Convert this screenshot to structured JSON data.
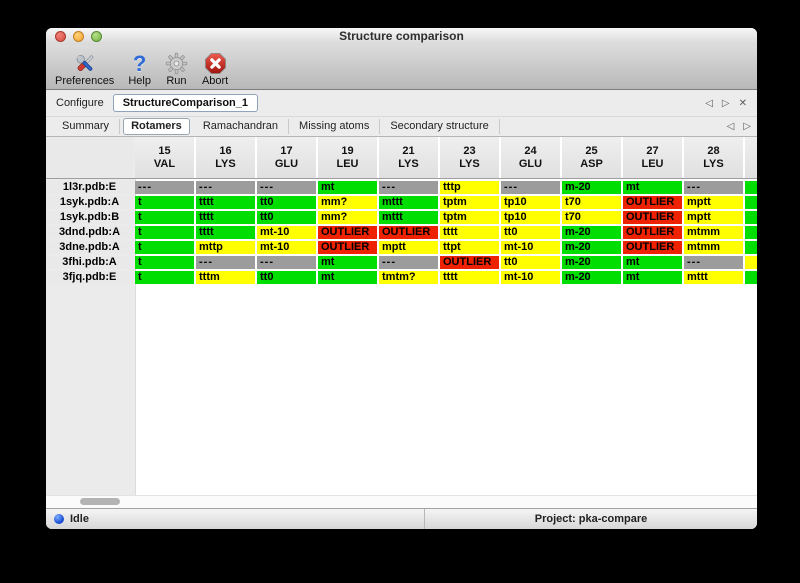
{
  "window": {
    "title": "Structure comparison"
  },
  "toolbar": {
    "buttons": [
      {
        "label": "Preferences"
      },
      {
        "label": "Help"
      },
      {
        "label": "Run"
      },
      {
        "label": "Abort"
      }
    ]
  },
  "configure": {
    "label": "Configure",
    "tab": "StructureComparison_1",
    "nav": {
      "left": "◁",
      "right": "▷",
      "close": "✕"
    }
  },
  "tabs": {
    "items": [
      "Summary",
      "Rotamers",
      "Ramachandran",
      "Missing atoms",
      "Secondary structure"
    ],
    "selected": "Rotamers",
    "nav": {
      "left": "◁",
      "right": "▷"
    }
  },
  "theme": {
    "green": "#00dd00",
    "yellow": "#ffff00",
    "red": "#ee2200",
    "gray": "#9c9c9c"
  },
  "grid": {
    "columns": [
      {
        "num": "15",
        "res": "VAL"
      },
      {
        "num": "16",
        "res": "LYS"
      },
      {
        "num": "17",
        "res": "GLU"
      },
      {
        "num": "19",
        "res": "LEU"
      },
      {
        "num": "21",
        "res": "LYS"
      },
      {
        "num": "23",
        "res": "LYS"
      },
      {
        "num": "24",
        "res": "GLU"
      },
      {
        "num": "25",
        "res": "ASP"
      },
      {
        "num": "27",
        "res": "LEU"
      },
      {
        "num": "28",
        "res": "LYS"
      }
    ],
    "rows": [
      {
        "label": "1l3r.pdb:E",
        "cells": [
          {
            "t": "---",
            "s": "gray"
          },
          {
            "t": "---",
            "s": "gray"
          },
          {
            "t": "---",
            "s": "gray"
          },
          {
            "t": "mt",
            "s": "green"
          },
          {
            "t": "---",
            "s": "gray"
          },
          {
            "t": "tttp",
            "s": "yellow"
          },
          {
            "t": "---",
            "s": "gray"
          },
          {
            "t": "m-20",
            "s": "green"
          },
          {
            "t": "mt",
            "s": "green"
          },
          {
            "t": "---",
            "s": "gray"
          },
          {
            "t": "",
            "s": "green"
          }
        ]
      },
      {
        "label": "1syk.pdb:A",
        "cells": [
          {
            "t": "t",
            "s": "green"
          },
          {
            "t": "tttt",
            "s": "green"
          },
          {
            "t": "tt0",
            "s": "green"
          },
          {
            "t": "mm?",
            "s": "yellow"
          },
          {
            "t": "mttt",
            "s": "green"
          },
          {
            "t": "tptm",
            "s": "yellow"
          },
          {
            "t": "tp10",
            "s": "yellow"
          },
          {
            "t": "t70",
            "s": "yellow"
          },
          {
            "t": "OUTLIER",
            "s": "red"
          },
          {
            "t": "mptt",
            "s": "yellow"
          },
          {
            "t": "",
            "s": "green"
          }
        ]
      },
      {
        "label": "1syk.pdb:B",
        "cells": [
          {
            "t": "t",
            "s": "green"
          },
          {
            "t": "tttt",
            "s": "green"
          },
          {
            "t": "tt0",
            "s": "green"
          },
          {
            "t": "mm?",
            "s": "yellow"
          },
          {
            "t": "mttt",
            "s": "green"
          },
          {
            "t": "tptm",
            "s": "yellow"
          },
          {
            "t": "tp10",
            "s": "yellow"
          },
          {
            "t": "t70",
            "s": "yellow"
          },
          {
            "t": "OUTLIER",
            "s": "red"
          },
          {
            "t": "mptt",
            "s": "yellow"
          },
          {
            "t": "",
            "s": "green"
          }
        ]
      },
      {
        "label": "3dnd.pdb:A",
        "cells": [
          {
            "t": "t",
            "s": "green"
          },
          {
            "t": "tttt",
            "s": "green"
          },
          {
            "t": "mt-10",
            "s": "yellow"
          },
          {
            "t": "OUTLIER",
            "s": "red"
          },
          {
            "t": "OUTLIER",
            "s": "red"
          },
          {
            "t": "tttt",
            "s": "yellow"
          },
          {
            "t": "tt0",
            "s": "yellow"
          },
          {
            "t": "m-20",
            "s": "green"
          },
          {
            "t": "OUTLIER",
            "s": "red"
          },
          {
            "t": "mtmm",
            "s": "yellow"
          },
          {
            "t": "",
            "s": "green"
          }
        ]
      },
      {
        "label": "3dne.pdb:A",
        "cells": [
          {
            "t": "t",
            "s": "green"
          },
          {
            "t": "mttp",
            "s": "yellow"
          },
          {
            "t": "mt-10",
            "s": "yellow"
          },
          {
            "t": "OUTLIER",
            "s": "red"
          },
          {
            "t": "mptt",
            "s": "yellow"
          },
          {
            "t": "ttpt",
            "s": "yellow"
          },
          {
            "t": "mt-10",
            "s": "yellow"
          },
          {
            "t": "m-20",
            "s": "green"
          },
          {
            "t": "OUTLIER",
            "s": "red"
          },
          {
            "t": "mtmm",
            "s": "yellow"
          },
          {
            "t": "",
            "s": "green"
          }
        ]
      },
      {
        "label": "3fhi.pdb:A",
        "cells": [
          {
            "t": "t",
            "s": "green"
          },
          {
            "t": "---",
            "s": "gray"
          },
          {
            "t": "---",
            "s": "gray"
          },
          {
            "t": "mt",
            "s": "green"
          },
          {
            "t": "---",
            "s": "gray"
          },
          {
            "t": "OUTLIER",
            "s": "red"
          },
          {
            "t": "tt0",
            "s": "yellow"
          },
          {
            "t": "m-20",
            "s": "green"
          },
          {
            "t": "mt",
            "s": "green"
          },
          {
            "t": "---",
            "s": "gray"
          },
          {
            "t": "",
            "s": "yellow"
          }
        ]
      },
      {
        "label": "3fjq.pdb:E",
        "cells": [
          {
            "t": "t",
            "s": "green"
          },
          {
            "t": "tttm",
            "s": "yellow"
          },
          {
            "t": "tt0",
            "s": "green"
          },
          {
            "t": "mt",
            "s": "green"
          },
          {
            "t": "tmtm?",
            "s": "yellow"
          },
          {
            "t": "tttt",
            "s": "yellow"
          },
          {
            "t": "mt-10",
            "s": "yellow"
          },
          {
            "t": "m-20",
            "s": "green"
          },
          {
            "t": "mt",
            "s": "green"
          },
          {
            "t": "mttt",
            "s": "yellow"
          },
          {
            "t": "",
            "s": "green"
          }
        ]
      }
    ]
  },
  "status_bar": {
    "status": "Idle",
    "project": "Project: pka-compare"
  }
}
